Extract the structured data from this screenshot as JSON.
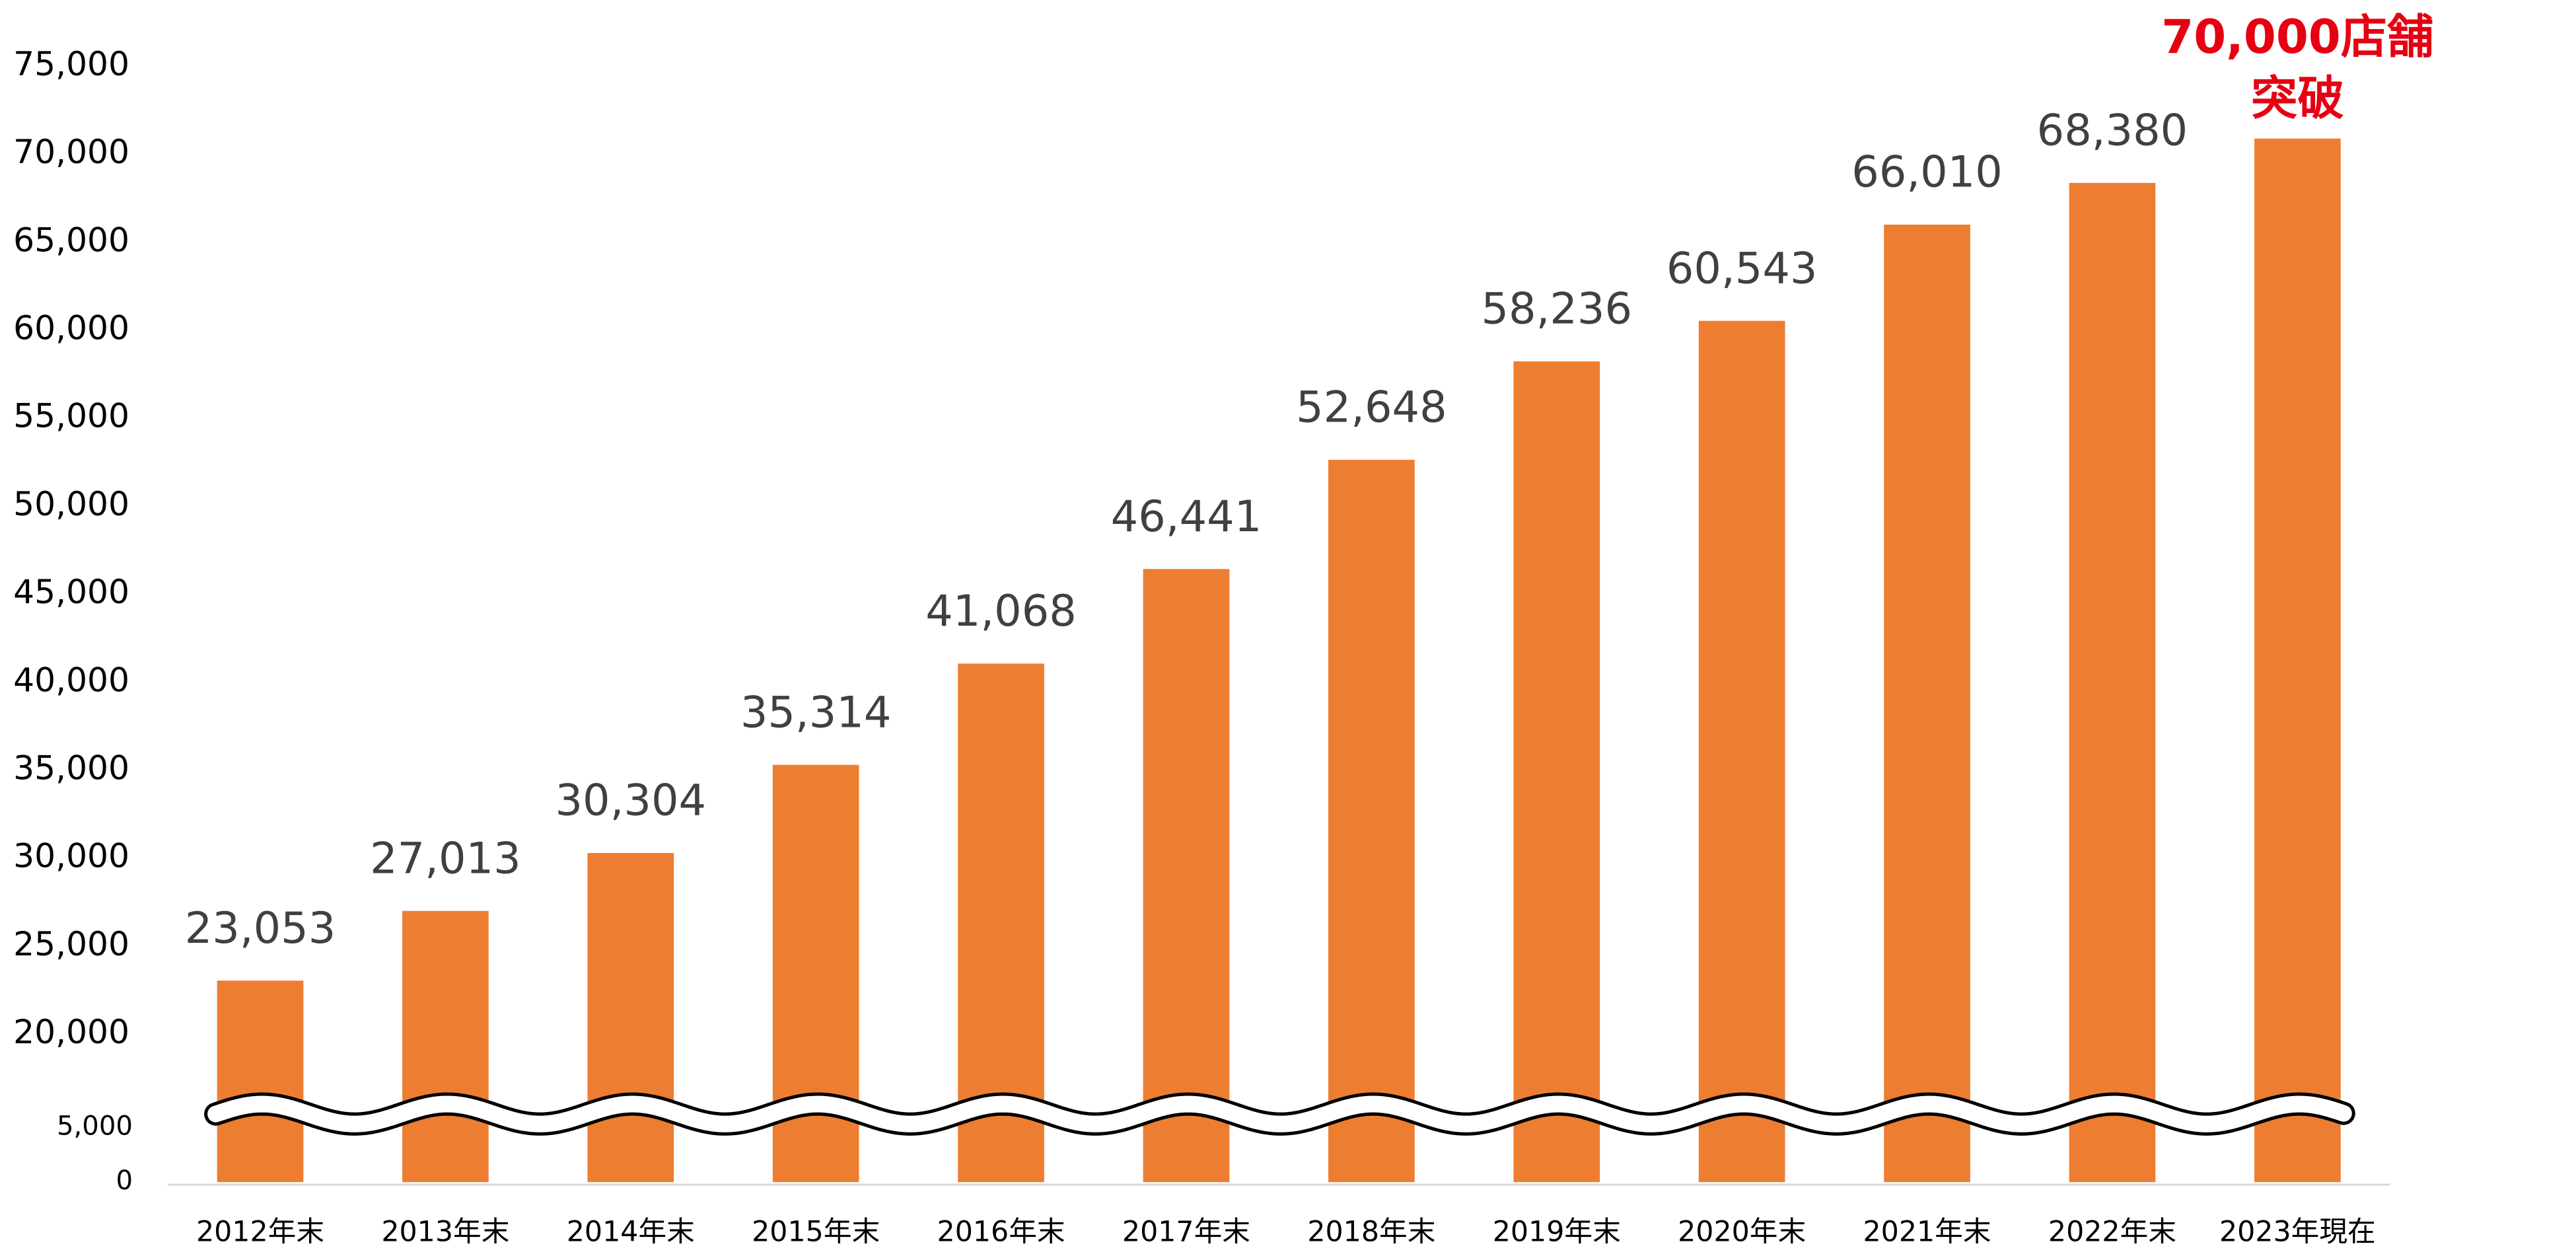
{
  "chart_data": {
    "type": "bar",
    "categories": [
      "2012年末",
      "2013年末",
      "2014年末",
      "2015年末",
      "2016年末",
      "2017年末",
      "2018年末",
      "2019年末",
      "2020年末",
      "2021年末",
      "2022年末",
      "2023年現在"
    ],
    "values": [
      23053,
      27013,
      30304,
      35314,
      41068,
      46441,
      52648,
      58236,
      60543,
      66010,
      68380,
      70900
    ],
    "value_labels": [
      "23,053",
      "27,013",
      "30,304",
      "35,314",
      "41,068",
      "46,441",
      "52,648",
      "58,236",
      "60,543",
      "66,010",
      "68,380",
      null
    ],
    "color": "#ED7D31",
    "ylim": [
      0,
      75000
    ],
    "yticks": [
      0,
      {
        "value": 5000,
        "label": "5,000"
      },
      {
        "value": 20000,
        "label": "20,000"
      },
      {
        "value": 25000,
        "label": "25,000"
      },
      {
        "value": 30000,
        "label": "30,000"
      },
      {
        "value": 35000,
        "label": "35,000"
      },
      {
        "value": 40000,
        "label": "40,000"
      },
      {
        "value": 45000,
        "label": "45,000"
      },
      {
        "value": 50000,
        "label": "50,000"
      },
      {
        "value": 55000,
        "label": "55,000"
      },
      {
        "value": 60000,
        "label": "60,000"
      },
      {
        "value": 65000,
        "label": "65,000"
      },
      {
        "value": 70000,
        "label": "70,000"
      },
      {
        "value": 75000,
        "label": "75,000"
      }
    ],
    "annotation": [
      "70,000店舗",
      "突破"
    ],
    "annotation_color": "#E60012",
    "grid": false
  }
}
